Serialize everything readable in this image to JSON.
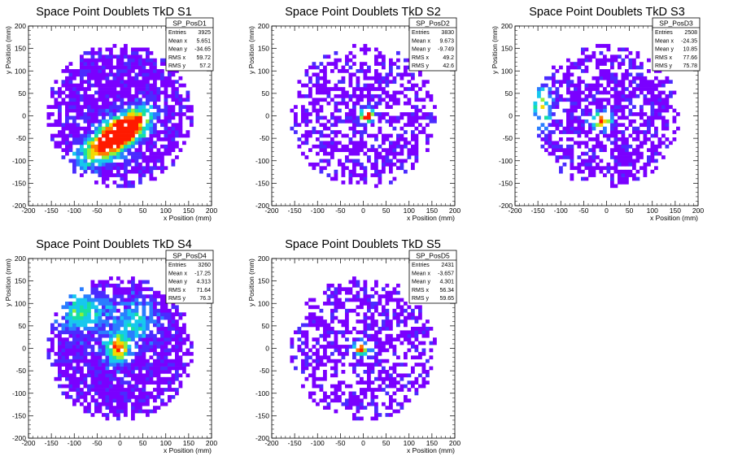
{
  "chart_data": [
    {
      "type": "heatmap",
      "title": "Space Point Doublets TkD S1",
      "xlabel": "x Position (mm)",
      "ylabel": "y Position (mm)",
      "xlim": [
        -200,
        200
      ],
      "ylim": [
        -200,
        200
      ],
      "xticks": [
        -200,
        -150,
        -100,
        -50,
        0,
        50,
        100,
        150,
        200
      ],
      "yticks": [
        -200,
        -150,
        -100,
        -50,
        0,
        50,
        100,
        150,
        200
      ],
      "color_scale": [
        "#7a00ff",
        "#4b2bff",
        "#2a7dff",
        "#16c8ee",
        "#18e0a0",
        "#8ef03a",
        "#f5d800",
        "#ff7a00",
        "#ff1a00"
      ],
      "stats": {
        "name": "SP_PosD1",
        "rows": [
          [
            "Entries",
            "3925"
          ],
          [
            "Mean x",
            "5.651"
          ],
          [
            "Mean y",
            "-34.65"
          ],
          [
            "RMS x",
            "59.72"
          ],
          [
            "RMS y",
            "57.2"
          ]
        ]
      },
      "hotspots": [
        {
          "x": -20,
          "y": -55,
          "sx": 50,
          "sy": 22,
          "rot": 35,
          "amp": 1.0
        },
        {
          "x": 15,
          "y": -25,
          "sx": 40,
          "sy": 20,
          "rot": 35,
          "amp": 0.7
        }
      ],
      "radius": 160,
      "fill_density": 0.82
    },
    {
      "type": "heatmap",
      "title": "Space Point Doublets TkD S2",
      "xlabel": "x Position (mm)",
      "ylabel": "y Position (mm)",
      "xlim": [
        -200,
        200
      ],
      "ylim": [
        -200,
        200
      ],
      "xticks": [
        -200,
        -150,
        -100,
        -50,
        0,
        50,
        100,
        150,
        200
      ],
      "yticks": [
        -200,
        -150,
        -100,
        -50,
        0,
        50,
        100,
        150,
        200
      ],
      "color_scale": [
        "#7a00ff",
        "#4b2bff",
        "#2a7dff",
        "#16c8ee",
        "#18e0a0",
        "#8ef03a",
        "#f5d800",
        "#ff7a00",
        "#ff1a00"
      ],
      "stats": {
        "name": "SP_PosD2",
        "rows": [
          [
            "Entries",
            "3830"
          ],
          [
            "Mean x",
            "9.673"
          ],
          [
            "Mean y",
            "-9.749"
          ],
          [
            "RMS x",
            "49.2"
          ],
          [
            "RMS y",
            "42.6"
          ]
        ]
      },
      "hotspots": [
        {
          "x": 8,
          "y": 0,
          "sx": 10,
          "sy": 10,
          "rot": 0,
          "amp": 1.0
        }
      ],
      "radius": 160,
      "fill_density": 0.55
    },
    {
      "type": "heatmap",
      "title": "Space Point Doublets TkD S3",
      "xlabel": "x Position (mm)",
      "ylabel": "y Position (mm)",
      "xlim": [
        -200,
        200
      ],
      "ylim": [
        -200,
        200
      ],
      "xticks": [
        -200,
        -150,
        -100,
        -50,
        0,
        50,
        100,
        150,
        200
      ],
      "yticks": [
        -200,
        -150,
        -100,
        -50,
        0,
        50,
        100,
        150,
        200
      ],
      "color_scale": [
        "#7a00ff",
        "#4b2bff",
        "#2a7dff",
        "#16c8ee",
        "#18e0a0",
        "#8ef03a",
        "#f5d800",
        "#ff7a00",
        "#ff1a00"
      ],
      "stats": {
        "name": "SP_PosD3",
        "rows": [
          [
            "Entries",
            "2508"
          ],
          [
            "Mean x",
            "-24.35"
          ],
          [
            "Mean y",
            "10.85"
          ],
          [
            "RMS x",
            "77.66"
          ],
          [
            "RMS y",
            "75.78"
          ]
        ]
      },
      "hotspots": [
        {
          "x": -10,
          "y": -10,
          "sx": 15,
          "sy": 12,
          "rot": 0,
          "amp": 0.9
        },
        {
          "x": -140,
          "y": 20,
          "sx": 15,
          "sy": 35,
          "rot": 0,
          "amp": 0.5
        }
      ],
      "radius": 160,
      "fill_density": 0.62
    },
    {
      "type": "heatmap",
      "title": "Space Point Doublets TkD S4",
      "xlabel": "x Position (mm)",
      "ylabel": "y Position (mm)",
      "xlim": [
        -200,
        200
      ],
      "ylim": [
        -200,
        200
      ],
      "xticks": [
        -200,
        -150,
        -100,
        -50,
        0,
        50,
        100,
        150,
        200
      ],
      "yticks": [
        -200,
        -150,
        -100,
        -50,
        0,
        50,
        100,
        150,
        200
      ],
      "color_scale": [
        "#7a00ff",
        "#4b2bff",
        "#2a7dff",
        "#16c8ee",
        "#18e0a0",
        "#8ef03a",
        "#f5d800",
        "#ff7a00",
        "#ff1a00"
      ],
      "stats": {
        "name": "SP_PosD4",
        "rows": [
          [
            "Entries",
            "3260"
          ],
          [
            "Mean x",
            "-17.25"
          ],
          [
            "Mean y",
            "4.313"
          ],
          [
            "RMS x",
            "71.64"
          ],
          [
            "RMS y",
            "76.3"
          ]
        ]
      },
      "hotspots": [
        {
          "x": -5,
          "y": 0,
          "sx": 18,
          "sy": 22,
          "rot": 0,
          "amp": 0.8
        },
        {
          "x": -80,
          "y": 80,
          "sx": 40,
          "sy": 30,
          "rot": 0,
          "amp": 0.45
        },
        {
          "x": 40,
          "y": 60,
          "sx": 30,
          "sy": 30,
          "rot": 0,
          "amp": 0.35
        }
      ],
      "radius": 160,
      "fill_density": 0.86
    },
    {
      "type": "heatmap",
      "title": "Space Point Doublets TkD S5",
      "xlabel": "x Position (mm)",
      "ylabel": "y Position (mm)",
      "xlim": [
        -200,
        200
      ],
      "ylim": [
        -200,
        200
      ],
      "xticks": [
        -200,
        -150,
        -100,
        -50,
        0,
        50,
        100,
        150,
        200
      ],
      "yticks": [
        -200,
        -150,
        -100,
        -50,
        0,
        50,
        100,
        150,
        200
      ],
      "color_scale": [
        "#7a00ff",
        "#4b2bff",
        "#2a7dff",
        "#16c8ee",
        "#18e0a0",
        "#8ef03a",
        "#f5d800",
        "#ff7a00",
        "#ff1a00"
      ],
      "stats": {
        "name": "SP_PosD5",
        "rows": [
          [
            "Entries",
            "2431"
          ],
          [
            "Mean x",
            "-3.657"
          ],
          [
            "Mean y",
            "4.301"
          ],
          [
            "RMS x",
            "56.34"
          ],
          [
            "RMS y",
            "59.65"
          ]
        ]
      },
      "hotspots": [
        {
          "x": -5,
          "y": 0,
          "sx": 10,
          "sy": 10,
          "rot": 0,
          "amp": 1.0
        }
      ],
      "radius": 160,
      "fill_density": 0.55
    }
  ]
}
